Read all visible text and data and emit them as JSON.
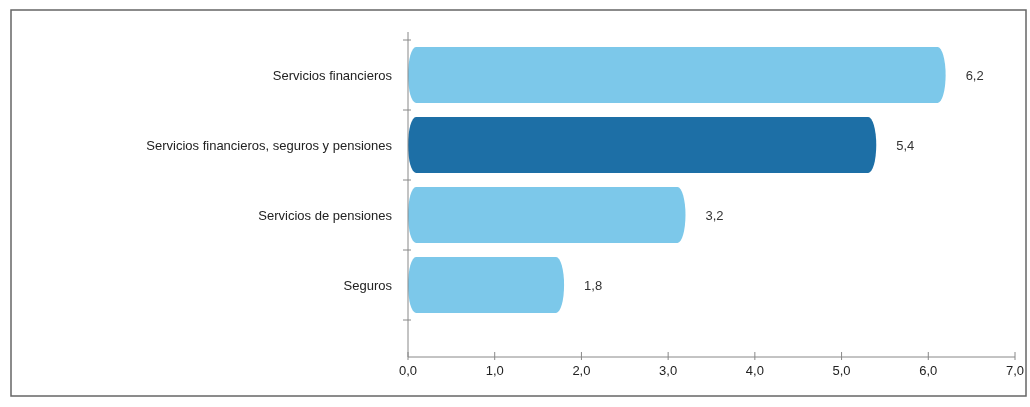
{
  "chart_data": {
    "type": "bar",
    "orientation": "horizontal",
    "categories": [
      "Servicios financieros",
      "Servicios financieros, seguros y pensiones",
      "Servicios de pensiones",
      "Seguros"
    ],
    "values": [
      6.2,
      5.4,
      3.2,
      1.8
    ],
    "colors": [
      "#7cc8ea",
      "#1d6fa6",
      "#7cc8ea",
      "#7cc8ea"
    ],
    "value_labels": [
      "6,2",
      "5,4",
      "3,2",
      "1,8"
    ],
    "xlim": [
      0,
      7
    ],
    "xticks": [
      {
        "value": 0,
        "label": "0,0"
      },
      {
        "value": 1,
        "label": "1,0"
      },
      {
        "value": 2,
        "label": "2,0"
      },
      {
        "value": 3,
        "label": "3,0"
      },
      {
        "value": 4,
        "label": "4,0"
      },
      {
        "value": 5,
        "label": "5,0"
      },
      {
        "value": 6,
        "label": "6,0"
      },
      {
        "value": 7,
        "label": "7,0"
      }
    ],
    "grid": false
  }
}
